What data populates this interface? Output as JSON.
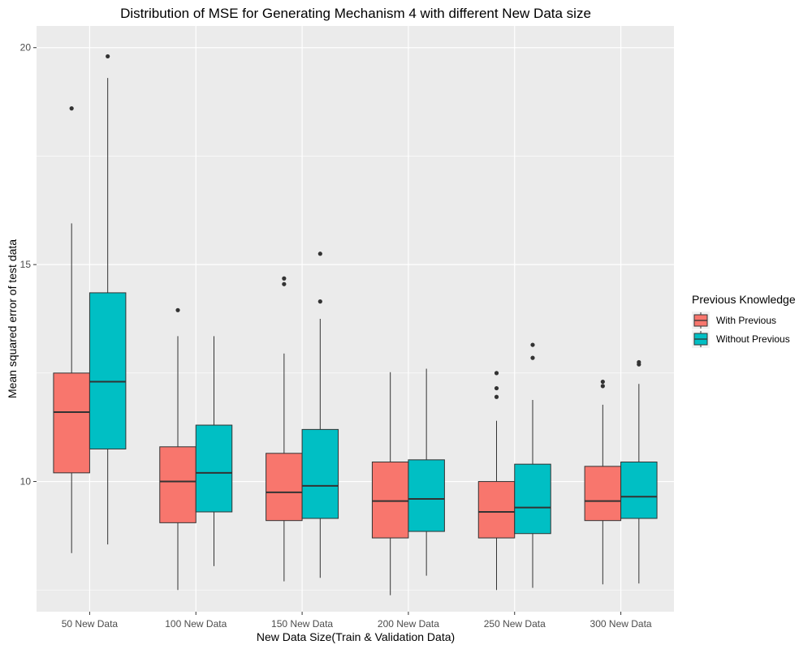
{
  "chart_data": {
    "type": "boxplot",
    "title": "Distribution of MSE for Generating Mechanism 4 with different New Data size",
    "xlabel": "New Data Size(Train & Validation Data)",
    "ylabel": "Mean squared error of test data",
    "ylim": [
      7.0,
      20.5
    ],
    "yticks": [
      10,
      15,
      20
    ],
    "categories": [
      "50 New Data",
      "100 New Data",
      "150 New Data",
      "200 New Data",
      "250 New Data",
      "300 New Data"
    ],
    "legend": {
      "title": "Previous Knowledge",
      "position": "right"
    },
    "grid": true,
    "background": "#ebebeb",
    "series": [
      {
        "name": "With Previous",
        "color": "#f8766d",
        "boxes": [
          {
            "whisker_low": 8.35,
            "q1": 10.2,
            "median": 11.6,
            "q3": 12.5,
            "whisker_high": 15.95,
            "outliers": [
              18.6
            ]
          },
          {
            "whisker_low": 7.5,
            "q1": 9.05,
            "median": 10.0,
            "q3": 10.8,
            "whisker_high": 13.35,
            "outliers": [
              13.95
            ]
          },
          {
            "whisker_low": 7.7,
            "q1": 9.1,
            "median": 9.75,
            "q3": 10.65,
            "whisker_high": 12.95,
            "outliers": [
              14.55,
              14.68
            ]
          },
          {
            "whisker_low": 7.38,
            "q1": 8.7,
            "median": 9.55,
            "q3": 10.45,
            "whisker_high": 12.52,
            "outliers": []
          },
          {
            "whisker_low": 7.5,
            "q1": 8.7,
            "median": 9.3,
            "q3": 10.0,
            "whisker_high": 11.4,
            "outliers": [
              11.95,
              12.15,
              12.5
            ]
          },
          {
            "whisker_low": 7.63,
            "q1": 9.1,
            "median": 9.55,
            "q3": 10.35,
            "whisker_high": 11.77,
            "outliers": [
              12.2,
              12.3
            ]
          }
        ]
      },
      {
        "name": "Without Previous",
        "color": "#00bfc4",
        "boxes": [
          {
            "whisker_low": 8.55,
            "q1": 10.75,
            "median": 12.3,
            "q3": 14.35,
            "whisker_high": 19.3,
            "outliers": [
              19.8
            ]
          },
          {
            "whisker_low": 8.05,
            "q1": 9.3,
            "median": 10.2,
            "q3": 11.3,
            "whisker_high": 13.35,
            "outliers": []
          },
          {
            "whisker_low": 7.78,
            "q1": 9.15,
            "median": 9.9,
            "q3": 11.2,
            "whisker_high": 13.75,
            "outliers": [
              14.15,
              15.25
            ]
          },
          {
            "whisker_low": 7.83,
            "q1": 8.85,
            "median": 9.6,
            "q3": 10.5,
            "whisker_high": 12.6,
            "outliers": []
          },
          {
            "whisker_low": 7.55,
            "q1": 8.8,
            "median": 9.4,
            "q3": 10.4,
            "whisker_high": 11.88,
            "outliers": [
              12.85,
              13.15
            ]
          },
          {
            "whisker_low": 7.65,
            "q1": 9.15,
            "median": 9.65,
            "q3": 10.45,
            "whisker_high": 12.25,
            "outliers": [
              12.7,
              12.75
            ]
          }
        ]
      }
    ]
  }
}
